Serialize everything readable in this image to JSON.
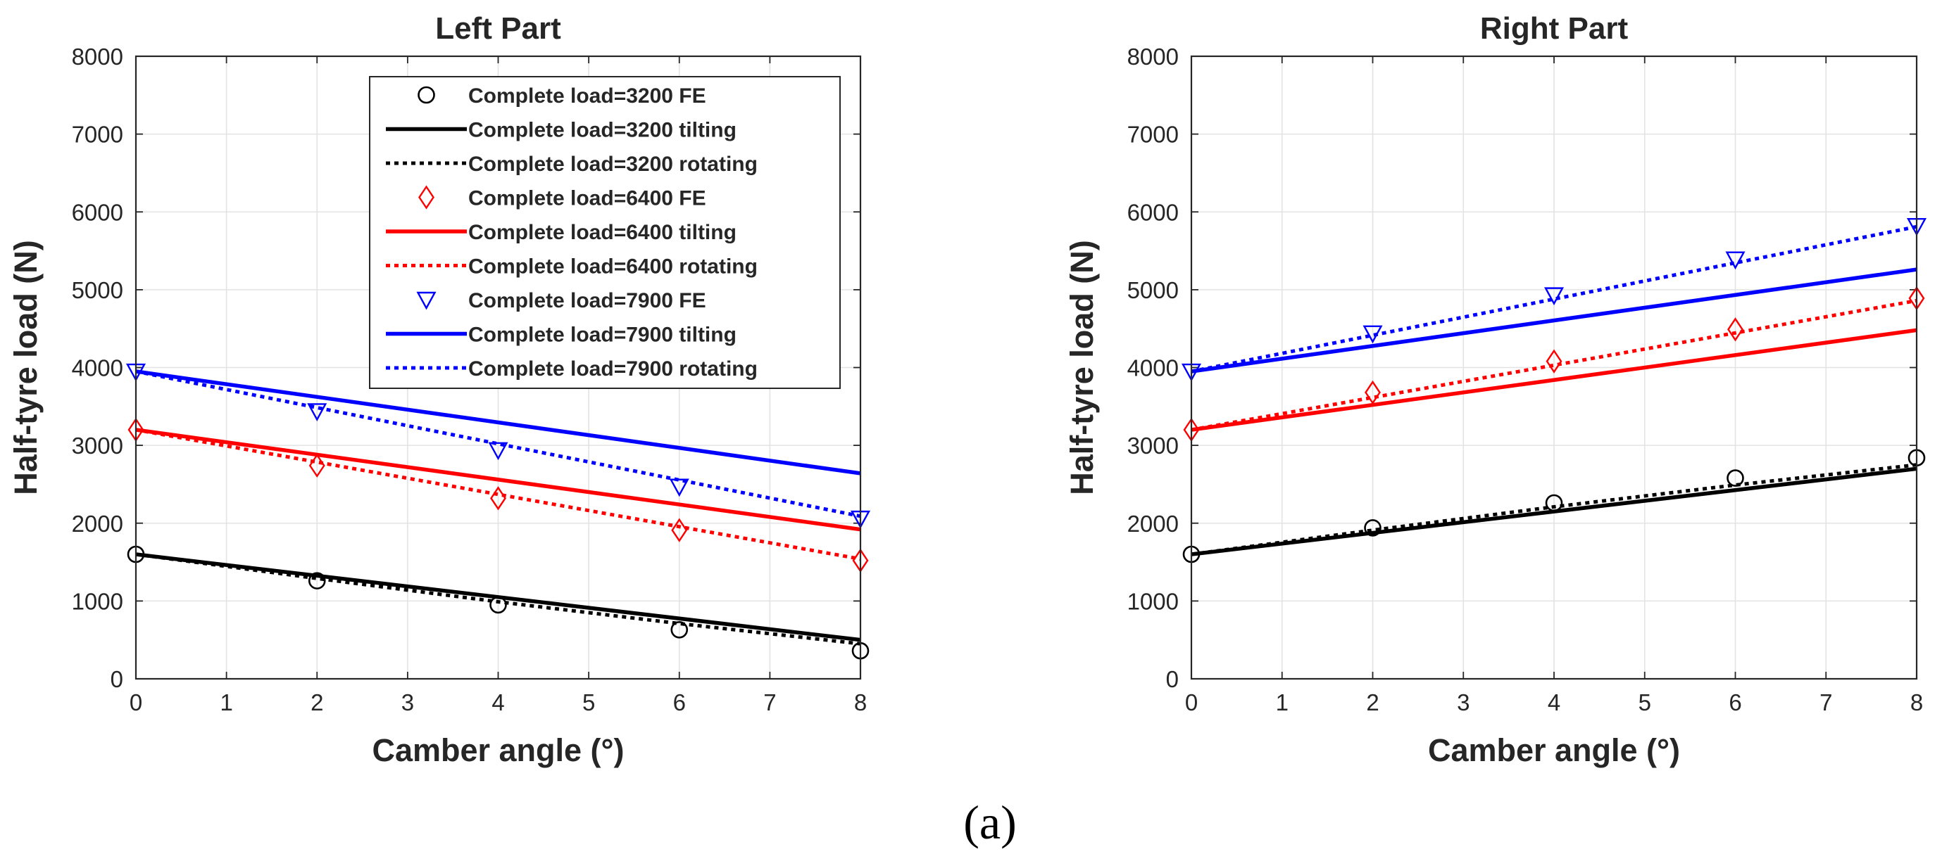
{
  "caption": "(a)",
  "chart_data": [
    {
      "type": "line",
      "title": "Left Part",
      "xlabel": "Camber angle (°)",
      "ylabel": "Half-tyre load (N)",
      "xlim": [
        0,
        8
      ],
      "ylim": [
        0,
        8000
      ],
      "xticks": [
        "0",
        "1",
        "2",
        "3",
        "4",
        "5",
        "6",
        "7",
        "8"
      ],
      "yticks": [
        "0",
        "1000",
        "2000",
        "3000",
        "4000",
        "5000",
        "6000",
        "7000",
        "8000"
      ],
      "grid": true,
      "legend_position": "top-right",
      "series": [
        {
          "name": "Complete load=3200 FE",
          "kind": "marker",
          "marker": "circle",
          "color": "#000000",
          "x": [
            0,
            2,
            4,
            6,
            8
          ],
          "y": [
            1600,
            1260,
            950,
            630,
            360
          ]
        },
        {
          "name": "Complete load=3200 tilting",
          "kind": "solid",
          "color": "#000000",
          "x": [
            0,
            8
          ],
          "y": [
            1600,
            500
          ]
        },
        {
          "name": "Complete load=3200 rotating",
          "kind": "dotted",
          "color": "#000000",
          "x": [
            0,
            2,
            4,
            6,
            8
          ],
          "y": [
            1600,
            1290,
            990,
            710,
            450
          ]
        },
        {
          "name": "Complete load=6400 FE",
          "kind": "marker",
          "marker": "diamond",
          "color": "#ff0000",
          "x": [
            0,
            2,
            4,
            6,
            8
          ],
          "y": [
            3200,
            2740,
            2320,
            1910,
            1520
          ]
        },
        {
          "name": "Complete load=6400 tilting",
          "kind": "solid",
          "color": "#ff0000",
          "x": [
            0,
            8
          ],
          "y": [
            3200,
            1920
          ]
        },
        {
          "name": "Complete load=6400 rotating",
          "kind": "dotted",
          "color": "#ff0000",
          "x": [
            0,
            8
          ],
          "y": [
            3200,
            1540
          ]
        },
        {
          "name": "Complete load=7900 FE",
          "kind": "marker",
          "marker": "triangle-down",
          "color": "#0000ff",
          "x": [
            0,
            2,
            4,
            6,
            8
          ],
          "y": [
            3950,
            3440,
            2940,
            2470,
            2060
          ]
        },
        {
          "name": "Complete load=7900 tilting",
          "kind": "solid",
          "color": "#0000ff",
          "x": [
            0,
            8
          ],
          "y": [
            3950,
            2640
          ]
        },
        {
          "name": "Complete load=7900 rotating",
          "kind": "dotted",
          "color": "#0000ff",
          "x": [
            0,
            8
          ],
          "y": [
            3950,
            2090
          ]
        }
      ]
    },
    {
      "type": "line",
      "title": "Right Part",
      "xlabel": "Camber angle (°)",
      "ylabel": "Half-tyre load (N)",
      "xlim": [
        0,
        8
      ],
      "ylim": [
        0,
        8000
      ],
      "xticks": [
        "0",
        "1",
        "2",
        "3",
        "4",
        "5",
        "6",
        "7",
        "8"
      ],
      "yticks": [
        "0",
        "1000",
        "2000",
        "3000",
        "4000",
        "5000",
        "6000",
        "7000",
        "8000"
      ],
      "grid": true,
      "series": [
        {
          "name": "Complete load=3200 FE",
          "kind": "marker",
          "marker": "circle",
          "color": "#000000",
          "x": [
            0,
            2,
            4,
            6,
            8
          ],
          "y": [
            1600,
            1940,
            2260,
            2580,
            2840
          ]
        },
        {
          "name": "Complete load=3200 tilting",
          "kind": "solid",
          "color": "#000000",
          "x": [
            0,
            8
          ],
          "y": [
            1600,
            2700
          ]
        },
        {
          "name": "Complete load=3200 rotating",
          "kind": "dotted",
          "color": "#000000",
          "x": [
            0,
            2,
            4,
            6,
            8
          ],
          "y": [
            1600,
            1910,
            2210,
            2490,
            2750
          ]
        },
        {
          "name": "Complete load=6400 FE",
          "kind": "marker",
          "marker": "diamond",
          "color": "#ff0000",
          "x": [
            0,
            2,
            4,
            6,
            8
          ],
          "y": [
            3200,
            3680,
            4080,
            4490,
            4890
          ]
        },
        {
          "name": "Complete load=6400 tilting",
          "kind": "solid",
          "color": "#ff0000",
          "x": [
            0,
            8
          ],
          "y": [
            3200,
            4480
          ]
        },
        {
          "name": "Complete load=6400 rotating",
          "kind": "dotted",
          "color": "#ff0000",
          "x": [
            0,
            8
          ],
          "y": [
            3200,
            4860
          ]
        },
        {
          "name": "Complete load=7900 FE",
          "kind": "marker",
          "marker": "triangle-down",
          "color": "#0000ff",
          "x": [
            0,
            2,
            4,
            6,
            8
          ],
          "y": [
            3950,
            4440,
            4930,
            5390,
            5820
          ]
        },
        {
          "name": "Complete load=7900 tilting",
          "kind": "solid",
          "color": "#0000ff",
          "x": [
            0,
            8
          ],
          "y": [
            3950,
            5260
          ]
        },
        {
          "name": "Complete load=7900 rotating",
          "kind": "dotted",
          "color": "#0000ff",
          "x": [
            0,
            8
          ],
          "y": [
            3950,
            5810
          ]
        }
      ]
    }
  ]
}
